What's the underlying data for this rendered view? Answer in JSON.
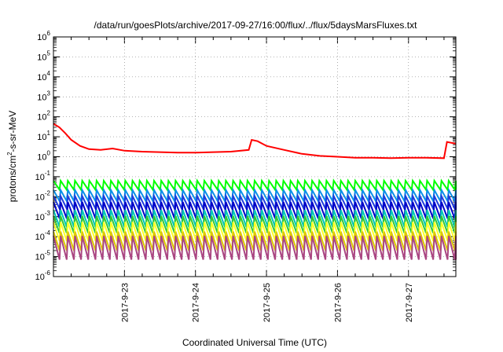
{
  "chart_data": {
    "type": "line",
    "title": "/data/run/goesPlots/archive/2017-09-27/16:00/flux/../flux/5daysMarsFluxes.txt",
    "xlabel": "Coordinated Universal Time (UTC)",
    "ylabel_main": "protons/cm",
    "ylabel_sup": "2",
    "ylabel_rest": "-s-sr-MeV",
    "y_scale": "log",
    "ylim": [
      1e-06,
      1000000.0
    ],
    "y_ticks": [
      {
        "base": "10",
        "exp": "-6"
      },
      {
        "base": "10",
        "exp": "-5"
      },
      {
        "base": "10",
        "exp": "-4"
      },
      {
        "base": "10",
        "exp": "-3"
      },
      {
        "base": "10",
        "exp": "-2"
      },
      {
        "base": "10",
        "exp": "-1"
      },
      {
        "base": "10",
        "exp": "0"
      },
      {
        "base": "10",
        "exp": "1"
      },
      {
        "base": "10",
        "exp": "2"
      },
      {
        "base": "10",
        "exp": "3"
      },
      {
        "base": "10",
        "exp": "4"
      },
      {
        "base": "10",
        "exp": "5"
      },
      {
        "base": "10",
        "exp": "6"
      }
    ],
    "x_ticks": [
      "2017-9-23",
      "2017-9-24",
      "2017-9-25",
      "2017-9-26",
      "2017-9-27"
    ],
    "xlim": [
      "2017-09-22T00:00",
      "2017-09-27T16:00"
    ],
    "grid": true,
    "series": [
      {
        "color": "#ff0000",
        "x": [
          "2017-09-22T00:00",
          "2017-09-22T02:00",
          "2017-09-22T04:00",
          "2017-09-22T06:00",
          "2017-09-22T09:00",
          "2017-09-22T12:00",
          "2017-09-22T16:00",
          "2017-09-22T20:00",
          "2017-09-23T00:00",
          "2017-09-23T06:00",
          "2017-09-23T12:00",
          "2017-09-23T18:00",
          "2017-09-24T00:00",
          "2017-09-24T06:00",
          "2017-09-24T12:00",
          "2017-09-24T18:00",
          "2017-09-24T19:00",
          "2017-09-24T21:00",
          "2017-09-25T00:00",
          "2017-09-25T06:00",
          "2017-09-25T12:00",
          "2017-09-25T18:00",
          "2017-09-26T00:00",
          "2017-09-26T06:00",
          "2017-09-26T12:00",
          "2017-09-26T18:00",
          "2017-09-27T00:00",
          "2017-09-27T06:00",
          "2017-09-27T12:00",
          "2017-09-27T13:00",
          "2017-09-27T16:00"
        ],
        "values": [
          45,
          30,
          15,
          7,
          3.5,
          2.4,
          2.2,
          2.6,
          2.0,
          1.8,
          1.7,
          1.6,
          1.6,
          1.7,
          1.8,
          2.2,
          7,
          6,
          3.5,
          2.2,
          1.4,
          1.1,
          1.0,
          0.9,
          0.9,
          0.85,
          0.9,
          0.9,
          0.85,
          5.5,
          4.5
        ]
      },
      {
        "color": "#00ff00",
        "mean": 0.035,
        "dip": 0.022
      },
      {
        "color": "#0a90e8",
        "mean": 0.012,
        "dip": 0.006
      },
      {
        "color": "#1e3cdc",
        "mean": 0.006,
        "dip": 0.0025
      },
      {
        "color": "#0000c8",
        "mean": 0.003,
        "dip": 0.0008
      },
      {
        "color": "#00c8b4",
        "mean": 0.0012,
        "dip": 0.0003
      },
      {
        "color": "#32c832",
        "mean": 0.0006,
        "dip": 0.00015
      },
      {
        "color": "#ffff28",
        "mean": 0.0003,
        "dip": 6e-05
      },
      {
        "color": "#dcc800",
        "mean": 0.0001,
        "dip": 2e-05
      },
      {
        "color": "#aa4682",
        "mean": 6e-05,
        "dip": 7e-06
      }
    ]
  }
}
